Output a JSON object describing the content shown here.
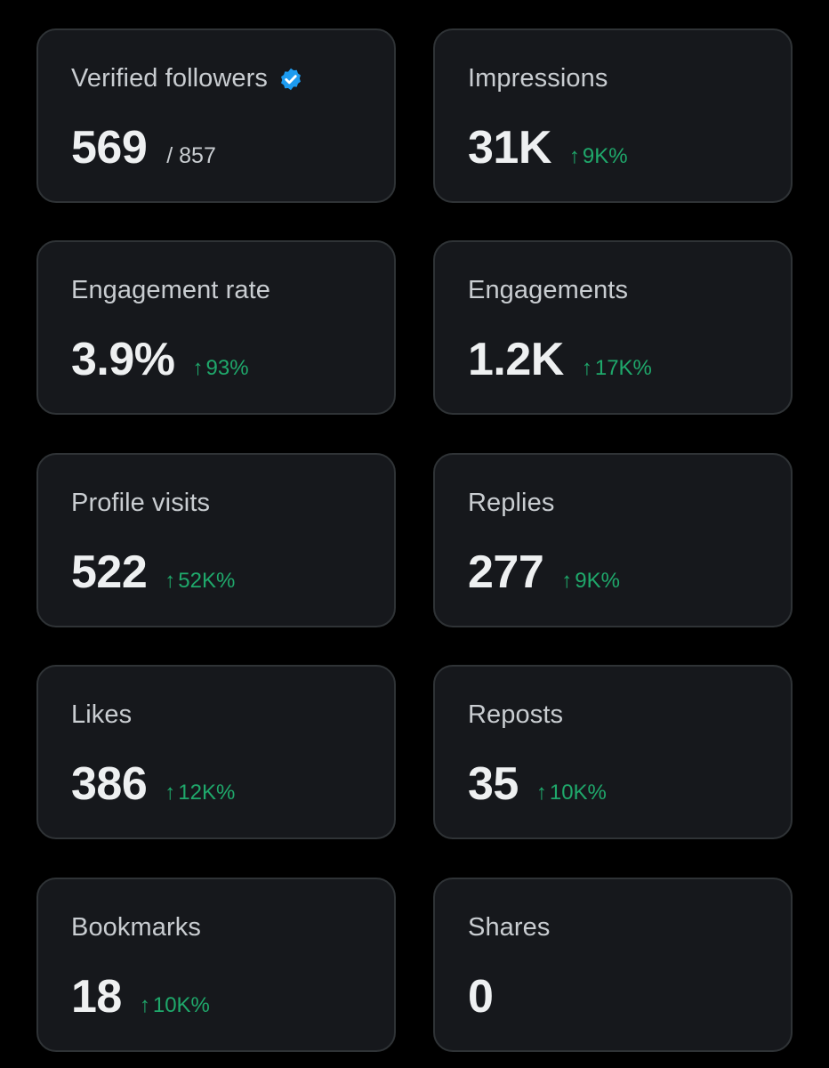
{
  "colors": {
    "background": "#000000",
    "card": "#16181c",
    "border": "#2f3336",
    "positive": "#1fa86b",
    "verified": "#1d9bf0"
  },
  "cards": [
    {
      "label": "Verified followers",
      "value": "569",
      "total": "/ 857",
      "icon": "verified-badge-icon"
    },
    {
      "label": "Impressions",
      "value": "31K",
      "change": "9K%",
      "icon": "up-arrow-icon"
    },
    {
      "label": "Engagement rate",
      "value": "3.9%",
      "change": "93%",
      "icon": "up-arrow-icon"
    },
    {
      "label": "Engagements",
      "value": "1.2K",
      "change": "17K%",
      "icon": "up-arrow-icon"
    },
    {
      "label": "Profile visits",
      "value": "522",
      "change": "52K%",
      "icon": "up-arrow-icon"
    },
    {
      "label": "Replies",
      "value": "277",
      "change": "9K%",
      "icon": "up-arrow-icon"
    },
    {
      "label": "Likes",
      "value": "386",
      "change": "12K%",
      "icon": "up-arrow-icon"
    },
    {
      "label": "Reposts",
      "value": "35",
      "change": "10K%",
      "icon": "up-arrow-icon"
    },
    {
      "label": "Bookmarks",
      "value": "18",
      "change": "10K%",
      "icon": "up-arrow-icon"
    },
    {
      "label": "Shares",
      "value": "0"
    }
  ]
}
